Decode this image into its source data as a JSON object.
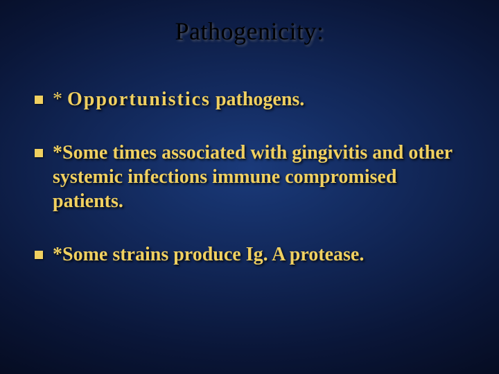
{
  "slide": {
    "title": "Pathogenicity:",
    "title_color": "#000000",
    "title_fontsize": 36,
    "background": {
      "type": "radial-gradient",
      "center_color": "#1a3a7a",
      "mid_color": "#12285a",
      "outer_color": "#0a1638",
      "edge_color": "#050b1f"
    },
    "bullet_color": "#f0d060",
    "bullet_fontsize": 28,
    "bullets": [
      {
        "prefix": "*",
        "emphasis": "Opportunistics",
        "rest": "  pathogens."
      },
      {
        "prefix": "*Some",
        "emphasis": "",
        "rest": " times associated with gingivitis and other systemic infections immune compromised patients."
      },
      {
        "prefix": "*Some",
        "emphasis": "",
        "rest": " strains produce Ig. A protease."
      }
    ]
  }
}
